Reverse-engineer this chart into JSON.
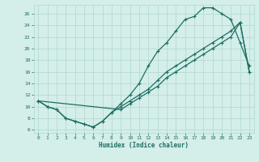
{
  "xlabel": "Humidex (Indice chaleur)",
  "xlim": [
    -0.5,
    23.5
  ],
  "ylim": [
    5.5,
    27.5
  ],
  "xticks": [
    0,
    1,
    2,
    3,
    4,
    5,
    6,
    7,
    8,
    9,
    10,
    11,
    12,
    13,
    14,
    15,
    16,
    17,
    18,
    19,
    20,
    21,
    22,
    23
  ],
  "yticks": [
    6,
    8,
    10,
    12,
    14,
    16,
    18,
    20,
    22,
    24,
    26
  ],
  "bg_color": "#d4eeea",
  "grid_color": "#b0d8d0",
  "line_color": "#1e6e62",
  "line1_x": [
    0,
    1,
    2,
    3,
    4,
    5,
    6,
    7,
    8,
    9,
    10,
    11,
    12,
    13,
    14,
    15,
    16,
    17,
    18,
    19,
    20,
    21,
    22,
    23
  ],
  "line1_y": [
    11,
    10,
    9.5,
    8,
    7.5,
    7,
    6.5,
    7.5,
    9,
    10.5,
    12,
    14,
    17,
    19.5,
    21,
    23,
    25,
    25.5,
    27,
    27,
    26,
    25,
    21,
    17
  ],
  "line2_x": [
    0,
    1,
    2,
    3,
    4,
    5,
    6,
    7,
    8,
    9,
    10,
    11,
    12,
    13,
    14,
    15,
    16,
    17,
    18,
    19,
    20,
    21,
    22,
    23
  ],
  "line2_y": [
    11,
    10,
    9.5,
    8,
    7.5,
    7,
    6.5,
    7.5,
    9,
    10,
    11,
    12,
    13,
    14.5,
    16,
    17,
    18,
    19,
    20,
    21,
    22,
    23,
    24.5,
    16
  ],
  "line3_x": [
    0,
    9,
    10,
    11,
    12,
    13,
    14,
    15,
    16,
    17,
    18,
    19,
    20,
    21,
    22,
    23
  ],
  "line3_y": [
    11,
    9.5,
    10.5,
    11.5,
    12.5,
    13.5,
    15,
    16,
    17,
    18,
    19,
    20,
    21,
    22,
    24.5,
    16
  ]
}
